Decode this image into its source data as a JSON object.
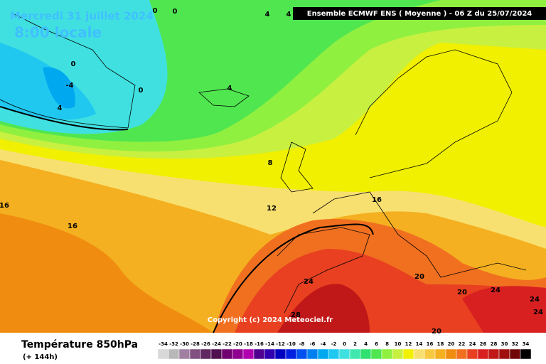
{
  "header": {
    "date": "Mercredi 31 juillet 2024",
    "local_time": "8:00 locale",
    "model": "Ensemble ECMWF ENS  ( Moyenne )  -  06 Z du 25/07/2024"
  },
  "map": {
    "copyright": "Copyright (c) 2024 Meteociel.fr",
    "contour_labels": [
      "0",
      "0",
      "0",
      "4",
      "4",
      "-4",
      "4",
      "0",
      "4",
      "8",
      "12",
      "16",
      "16",
      "16",
      "20",
      "24",
      "24",
      "24",
      "24",
      "20",
      "20",
      "28"
    ]
  },
  "legend": {
    "title": "Température 850hPa",
    "lead": "(+ 144h)",
    "items": [
      {
        "label": "-34",
        "color": "#d8d8d8"
      },
      {
        "label": "-32",
        "color": "#b8b8b8"
      },
      {
        "label": "-30",
        "color": "#a080a0"
      },
      {
        "label": "-28",
        "color": "#805080"
      },
      {
        "label": "-26",
        "color": "#602860"
      },
      {
        "label": "-24",
        "color": "#501050"
      },
      {
        "label": "-22",
        "color": "#700070"
      },
      {
        "label": "-20",
        "color": "#900090"
      },
      {
        "label": "-18",
        "color": "#b000b0"
      },
      {
        "label": "-16",
        "color": "#500090"
      },
      {
        "label": "-14",
        "color": "#3000b0"
      },
      {
        "label": "-12",
        "color": "#0000c0"
      },
      {
        "label": "-10",
        "color": "#0020e0"
      },
      {
        "label": "-8",
        "color": "#0050f0"
      },
      {
        "label": "-6",
        "color": "#0080f0"
      },
      {
        "label": "-4",
        "color": "#00a8f0"
      },
      {
        "label": "-2",
        "color": "#20c8f0"
      },
      {
        "label": "0",
        "color": "#40e0e0"
      },
      {
        "label": "2",
        "color": "#40e8b0"
      },
      {
        "label": "4",
        "color": "#30e070"
      },
      {
        "label": "6",
        "color": "#50e650"
      },
      {
        "label": "8",
        "color": "#90f040"
      },
      {
        "label": "10",
        "color": "#c8f040"
      },
      {
        "label": "12",
        "color": "#f0f000"
      },
      {
        "label": "14",
        "color": "#f8e070"
      },
      {
        "label": "16",
        "color": "#f8c840"
      },
      {
        "label": "18",
        "color": "#f4b020"
      },
      {
        "label": "20",
        "color": "#f08c10"
      },
      {
        "label": "22",
        "color": "#f07020"
      },
      {
        "label": "24",
        "color": "#e84020"
      },
      {
        "label": "26",
        "color": "#d82020"
      },
      {
        "label": "28",
        "color": "#c01818"
      },
      {
        "label": "30",
        "color": "#a01010"
      },
      {
        "label": "32",
        "color": "#700808"
      },
      {
        "label": "34",
        "color": "#000000"
      }
    ]
  }
}
